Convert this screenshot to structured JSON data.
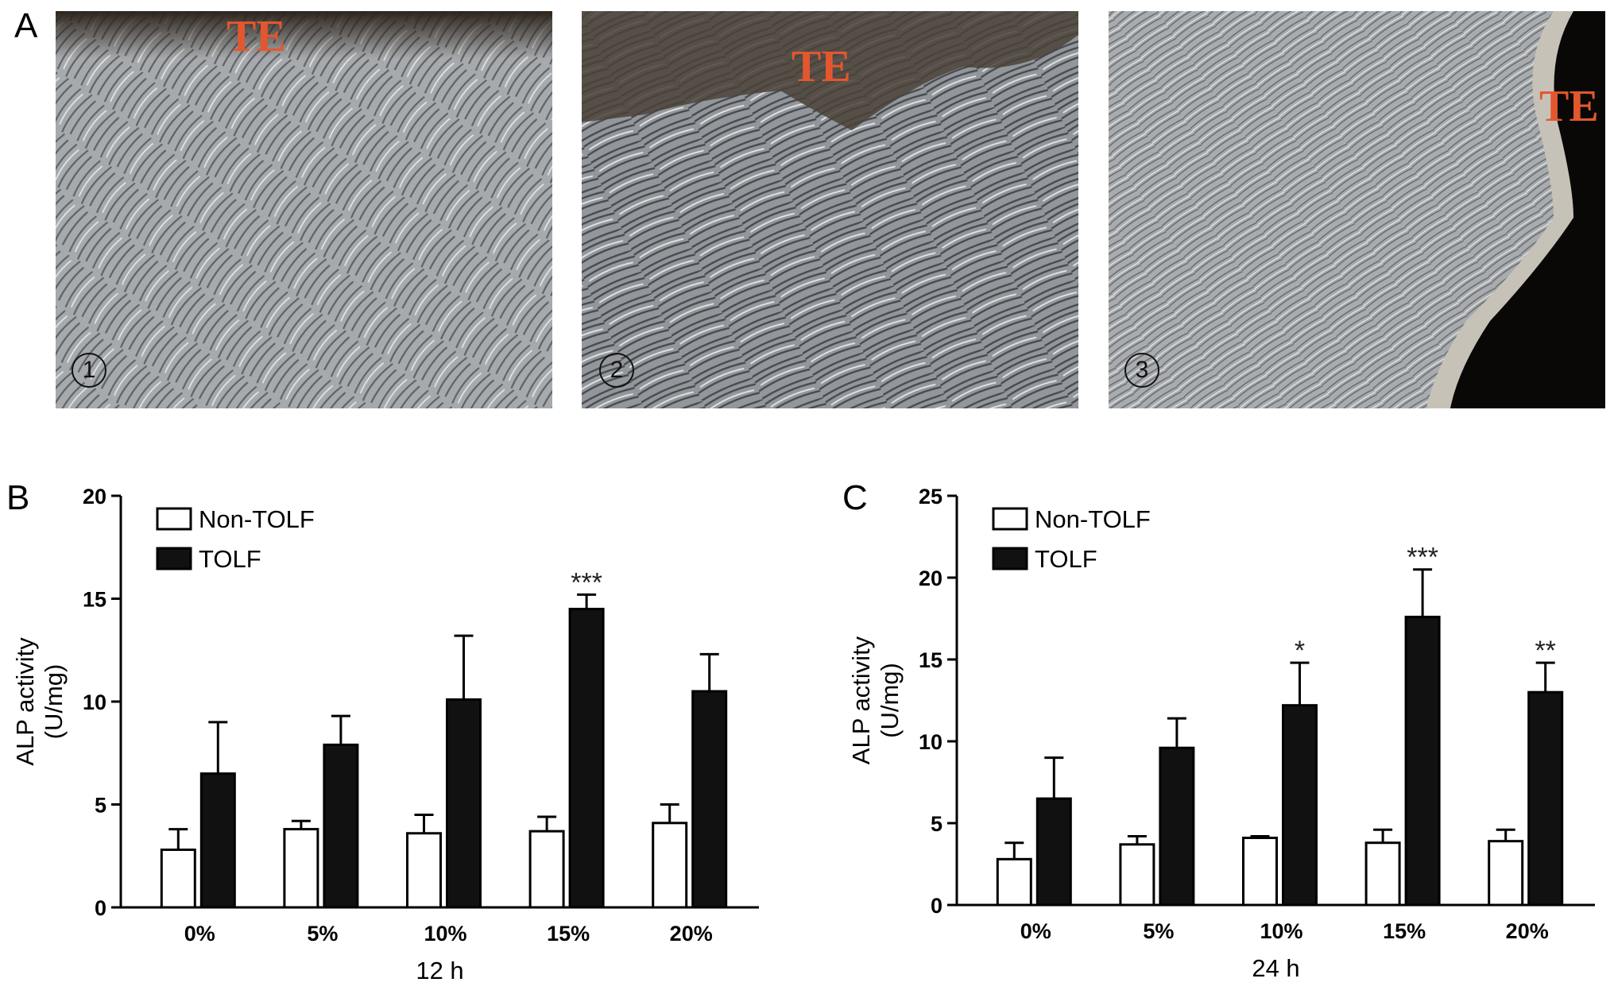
{
  "panel_a": {
    "letter": "A",
    "images": [
      {
        "label": "TE",
        "number": "1"
      },
      {
        "label": "TE",
        "number": "2"
      },
      {
        "label": "TE",
        "number": "3"
      }
    ]
  },
  "panel_b": {
    "letter": "B"
  },
  "panel_c": {
    "letter": "C"
  },
  "chart_data": [
    {
      "type": "bar",
      "categories": [
        "0%",
        "5%",
        "10%",
        "15%",
        "20%"
      ],
      "series": [
        {
          "name": "Non-TOLF",
          "values": [
            2.8,
            3.8,
            3.6,
            3.7,
            4.1
          ],
          "errors": [
            1.0,
            0.4,
            0.9,
            0.7,
            0.9
          ],
          "color": "#ffffff"
        },
        {
          "name": "TOLF",
          "values": [
            6.5,
            7.9,
            10.1,
            14.5,
            10.5
          ],
          "errors": [
            2.5,
            1.4,
            3.1,
            0.7,
            1.8
          ],
          "color": "#111111"
        }
      ],
      "significance": [
        "",
        "",
        "",
        "***",
        ""
      ],
      "xlabel": "12 h",
      "ylabel": "ALP activity",
      "ylabel_unit": "(U/mg)",
      "ylim": [
        0,
        20
      ],
      "yticks": [
        0,
        5,
        10,
        15,
        20
      ],
      "legend": "top-left"
    },
    {
      "type": "bar",
      "categories": [
        "0%",
        "5%",
        "10%",
        "15%",
        "20%"
      ],
      "series": [
        {
          "name": "Non-TOLF",
          "values": [
            2.8,
            3.7,
            4.1,
            3.8,
            3.9
          ],
          "errors": [
            1.0,
            0.5,
            0.1,
            0.8,
            0.7
          ],
          "color": "#ffffff"
        },
        {
          "name": "TOLF",
          "values": [
            6.5,
            9.6,
            12.2,
            17.6,
            13.0
          ],
          "errors": [
            2.5,
            1.8,
            2.6,
            2.9,
            1.8
          ],
          "color": "#111111"
        }
      ],
      "significance": [
        "",
        "",
        "*",
        "***",
        "**"
      ],
      "xlabel": "24 h",
      "ylabel": "ALP activity",
      "ylabel_unit": "(U/mg)",
      "ylim": [
        0,
        25
      ],
      "yticks": [
        0,
        5,
        10,
        15,
        20,
        25
      ],
      "legend": "top-left"
    }
  ]
}
